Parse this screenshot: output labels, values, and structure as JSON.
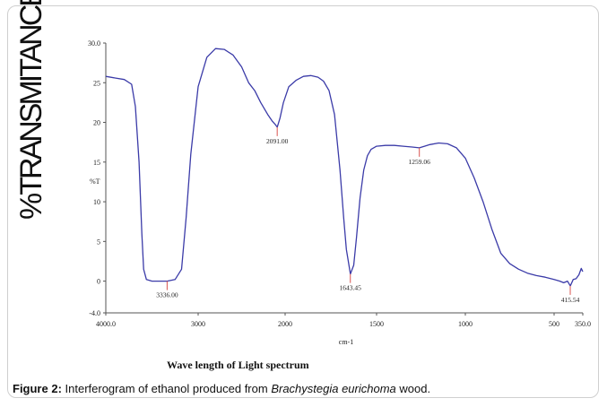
{
  "chart_data": {
    "type": "line",
    "ylabel_big": "%TRANSMITANCE",
    "ylabel_small": "%T",
    "xlabel_small": "cm-1",
    "xlabel_caption": "Wave length of Light spectrum",
    "xlim": [
      4000,
      350
    ],
    "ylim": [
      -4,
      30
    ],
    "x_ticks": [
      "4000.0",
      "3000",
      "2000",
      "1500",
      "1000",
      "500",
      "350.0"
    ],
    "x_tick_values": [
      4000,
      3000,
      2000,
      1500,
      1000,
      500,
      350
    ],
    "y_ticks": [
      "30.0",
      "25",
      "20",
      "15",
      "10",
      "5",
      "0",
      "-4.0"
    ],
    "y_tick_values": [
      30,
      25,
      20,
      15,
      10,
      5,
      0,
      -4
    ],
    "line_color": "#3b3ba8",
    "marker_color": "#d9534f",
    "series": [
      {
        "x": [
          4000,
          3900,
          3800,
          3720,
          3680,
          3640,
          3610,
          3590,
          3560,
          3500,
          3400,
          3336,
          3250,
          3180,
          3130,
          3080,
          3000,
          2900,
          2800,
          2700,
          2600,
          2500,
          2420,
          2350,
          2280,
          2200,
          2150,
          2110,
          2091,
          2060,
          2020,
          1980,
          1940,
          1900,
          1860,
          1820,
          1790,
          1760,
          1730,
          1700,
          1680,
          1665,
          1643,
          1625,
          1610,
          1590,
          1570,
          1550,
          1530,
          1500,
          1450,
          1400,
          1350,
          1300,
          1259,
          1230,
          1200,
          1150,
          1100,
          1050,
          1000,
          950,
          900,
          850,
          800,
          750,
          700,
          650,
          600,
          550,
          500,
          470,
          450,
          430,
          415,
          400,
          385,
          370,
          358,
          350
        ],
        "y": [
          25.8,
          25.6,
          25.4,
          24.8,
          22.0,
          15.0,
          6.0,
          1.5,
          0.2,
          0.0,
          0.0,
          0.0,
          0.2,
          1.5,
          8.0,
          16.0,
          24.5,
          28.2,
          29.3,
          29.2,
          28.5,
          27.0,
          25.0,
          24.0,
          22.5,
          21.0,
          20.2,
          19.7,
          19.4,
          20.5,
          22.5,
          24.5,
          25.3,
          25.8,
          25.9,
          25.7,
          25.2,
          24.0,
          21.0,
          14.0,
          8.0,
          4.0,
          0.9,
          2.0,
          5.5,
          10.5,
          14.0,
          15.8,
          16.6,
          17.0,
          17.1,
          17.1,
          17.0,
          16.9,
          16.8,
          17.0,
          17.2,
          17.4,
          17.3,
          16.8,
          15.5,
          13.0,
          10.0,
          6.5,
          3.5,
          2.2,
          1.5,
          1.0,
          0.7,
          0.5,
          0.2,
          0.0,
          -0.2,
          0.0,
          -0.6,
          0.2,
          0.3,
          0.8,
          1.6,
          1.2
        ]
      }
    ],
    "peaks": [
      {
        "x": 3336.0,
        "y": 0.0,
        "label": "3336.00"
      },
      {
        "x": 2091.0,
        "y": 19.4,
        "label": "2091.00"
      },
      {
        "x": 1643.45,
        "y": 0.9,
        "label": "1643.45"
      },
      {
        "x": 1259.06,
        "y": 16.8,
        "label": "1259.06"
      },
      {
        "x": 415.54,
        "y": -0.6,
        "label": "415.54"
      }
    ]
  },
  "caption": {
    "figure_label": "Figure 2:",
    "text_before": " Interferogram of ethanol produced from ",
    "species": "Brachystegia eurichoma",
    "text_after": " wood."
  }
}
